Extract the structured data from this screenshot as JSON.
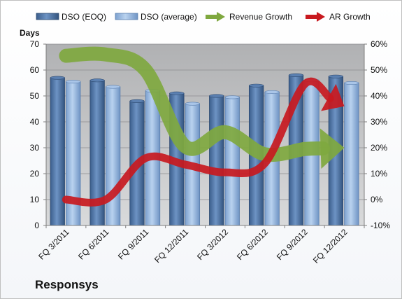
{
  "company": "Responsys",
  "chart_data": {
    "type": "bar",
    "categories": [
      "FQ 3/2011",
      "FQ 6/2011",
      "FQ 9/2011",
      "FQ 12/2011",
      "FQ 3/2012",
      "FQ 6/2012",
      "FQ 9/2012",
      "FQ 12/2012"
    ],
    "series": [
      {
        "name": "DSO (EOQ)",
        "type": "bar",
        "axis": "left",
        "values": [
          57,
          56,
          48,
          51,
          50,
          54,
          58,
          57.5
        ]
      },
      {
        "name": "DSO (average)",
        "type": "bar",
        "axis": "left",
        "values": [
          55.5,
          53.5,
          52,
          47,
          49.5,
          51.5,
          56,
          55
        ]
      },
      {
        "name": "Revenue Growth",
        "type": "line",
        "axis": "right",
        "values": [
          55.5,
          56,
          50,
          20.5,
          26,
          17.5,
          19.5,
          20
        ]
      },
      {
        "name": "AR Growth",
        "type": "line",
        "axis": "right",
        "values": [
          0,
          0,
          16,
          13.5,
          10.5,
          14,
          44.5,
          36
        ]
      }
    ],
    "ylabel": "Days",
    "ylim": [
      0,
      70
    ],
    "yticks": [
      "0",
      "10",
      "20",
      "30",
      "40",
      "50",
      "60",
      "70"
    ],
    "y2lim": [
      -10,
      60
    ],
    "y2ticks": [
      "-10%",
      "0%",
      "10%",
      "20%",
      "30%",
      "40%",
      "50%",
      "60%"
    ],
    "legend_position": "top",
    "grid": true,
    "colors": {
      "dso_eoq": "#4a6f9e",
      "dso_avg": "#8fb2dc",
      "revenue_growth": "#7fa83f",
      "ar_growth": "#c8191f",
      "plot_bg": "#bfc0c2"
    }
  }
}
